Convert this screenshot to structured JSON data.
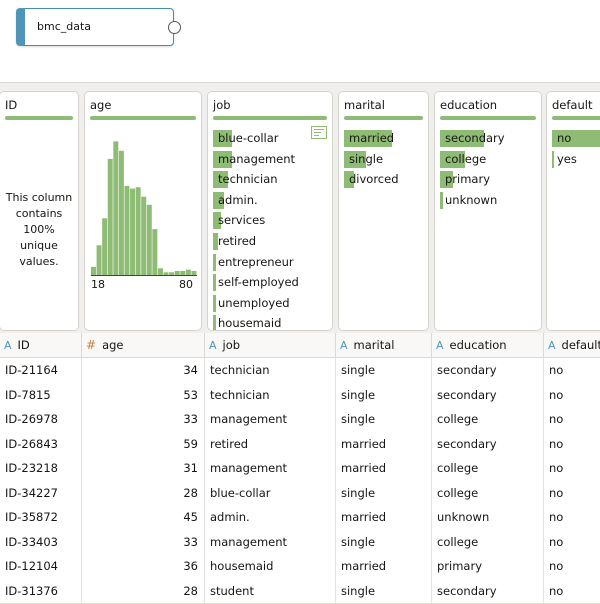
{
  "node": {
    "label": "bmc_data"
  },
  "columns": [
    {
      "key": "ID",
      "label": "ID",
      "type_glyph": "A"
    },
    {
      "key": "age",
      "label": "age",
      "type_glyph": "#"
    },
    {
      "key": "job",
      "label": "job",
      "type_glyph": "A"
    },
    {
      "key": "marital",
      "label": "marital",
      "type_glyph": "A"
    },
    {
      "key": "education",
      "label": "education",
      "type_glyph": "A"
    },
    {
      "key": "default",
      "label": "default",
      "type_glyph": "A"
    }
  ],
  "profiles": {
    "ID": {
      "title": "ID",
      "unique_lines": [
        "This column",
        "contains",
        "100%",
        "unique",
        "values."
      ]
    },
    "age": {
      "title": "age",
      "min_label": "18",
      "max_label": "80",
      "histogram": [
        0.06,
        0.22,
        0.42,
        0.86,
        0.99,
        0.92,
        0.66,
        0.64,
        0.65,
        0.58,
        0.52,
        0.34,
        0.05,
        0.02,
        0.02,
        0.03,
        0.03,
        0.04,
        0.03
      ]
    },
    "job": {
      "title": "job",
      "items": [
        {
          "label": "blue-collar",
          "share": 0.21
        },
        {
          "label": "management",
          "share": 0.21
        },
        {
          "label": "technician",
          "share": 0.17
        },
        {
          "label": "admin.",
          "share": 0.12
        },
        {
          "label": "services",
          "share": 0.09
        },
        {
          "label": "retired",
          "share": 0.05
        },
        {
          "label": "entrepreneur",
          "share": 0.03
        },
        {
          "label": "self-employed",
          "share": 0.03
        },
        {
          "label": "unemployed",
          "share": 0.03
        },
        {
          "label": "housemaid",
          "share": 0.03
        }
      ]
    },
    "marital": {
      "title": "marital",
      "items": [
        {
          "label": "married",
          "share": 0.6
        },
        {
          "label": "single",
          "share": 0.28
        },
        {
          "label": "divorced",
          "share": 0.12
        }
      ]
    },
    "education": {
      "title": "education",
      "items": [
        {
          "label": "secondary",
          "share": 0.51
        },
        {
          "label": "college",
          "share": 0.29
        },
        {
          "label": "primary",
          "share": 0.15
        },
        {
          "label": "unknown",
          "share": 0.04
        }
      ]
    },
    "default": {
      "title": "default",
      "items": [
        {
          "label": "no",
          "share": 0.98
        },
        {
          "label": "yes",
          "share": 0.02
        }
      ]
    }
  },
  "rows": [
    {
      "ID": "ID-21164",
      "age": "34",
      "job": "technician",
      "marital": "single",
      "education": "secondary",
      "default": "no"
    },
    {
      "ID": "ID-7815",
      "age": "53",
      "job": "technician",
      "marital": "single",
      "education": "secondary",
      "default": "no"
    },
    {
      "ID": "ID-26978",
      "age": "33",
      "job": "management",
      "marital": "single",
      "education": "college",
      "default": "no"
    },
    {
      "ID": "ID-26843",
      "age": "59",
      "job": "retired",
      "marital": "married",
      "education": "secondary",
      "default": "no"
    },
    {
      "ID": "ID-23218",
      "age": "31",
      "job": "management",
      "marital": "married",
      "education": "college",
      "default": "no"
    },
    {
      "ID": "ID-34227",
      "age": "28",
      "job": "blue-collar",
      "marital": "single",
      "education": "college",
      "default": "no"
    },
    {
      "ID": "ID-35872",
      "age": "45",
      "job": "admin.",
      "marital": "married",
      "education": "unknown",
      "default": "no"
    },
    {
      "ID": "ID-33403",
      "age": "33",
      "job": "management",
      "marital": "single",
      "education": "college",
      "default": "no"
    },
    {
      "ID": "ID-12104",
      "age": "36",
      "job": "housemaid",
      "marital": "married",
      "education": "primary",
      "default": "no"
    },
    {
      "ID": "ID-31376",
      "age": "28",
      "job": "student",
      "marital": "single",
      "education": "secondary",
      "default": "no"
    }
  ],
  "colors": {
    "bar": "#8ebc75",
    "accent": "#4e95b7",
    "number_type": "#d07b3a"
  }
}
